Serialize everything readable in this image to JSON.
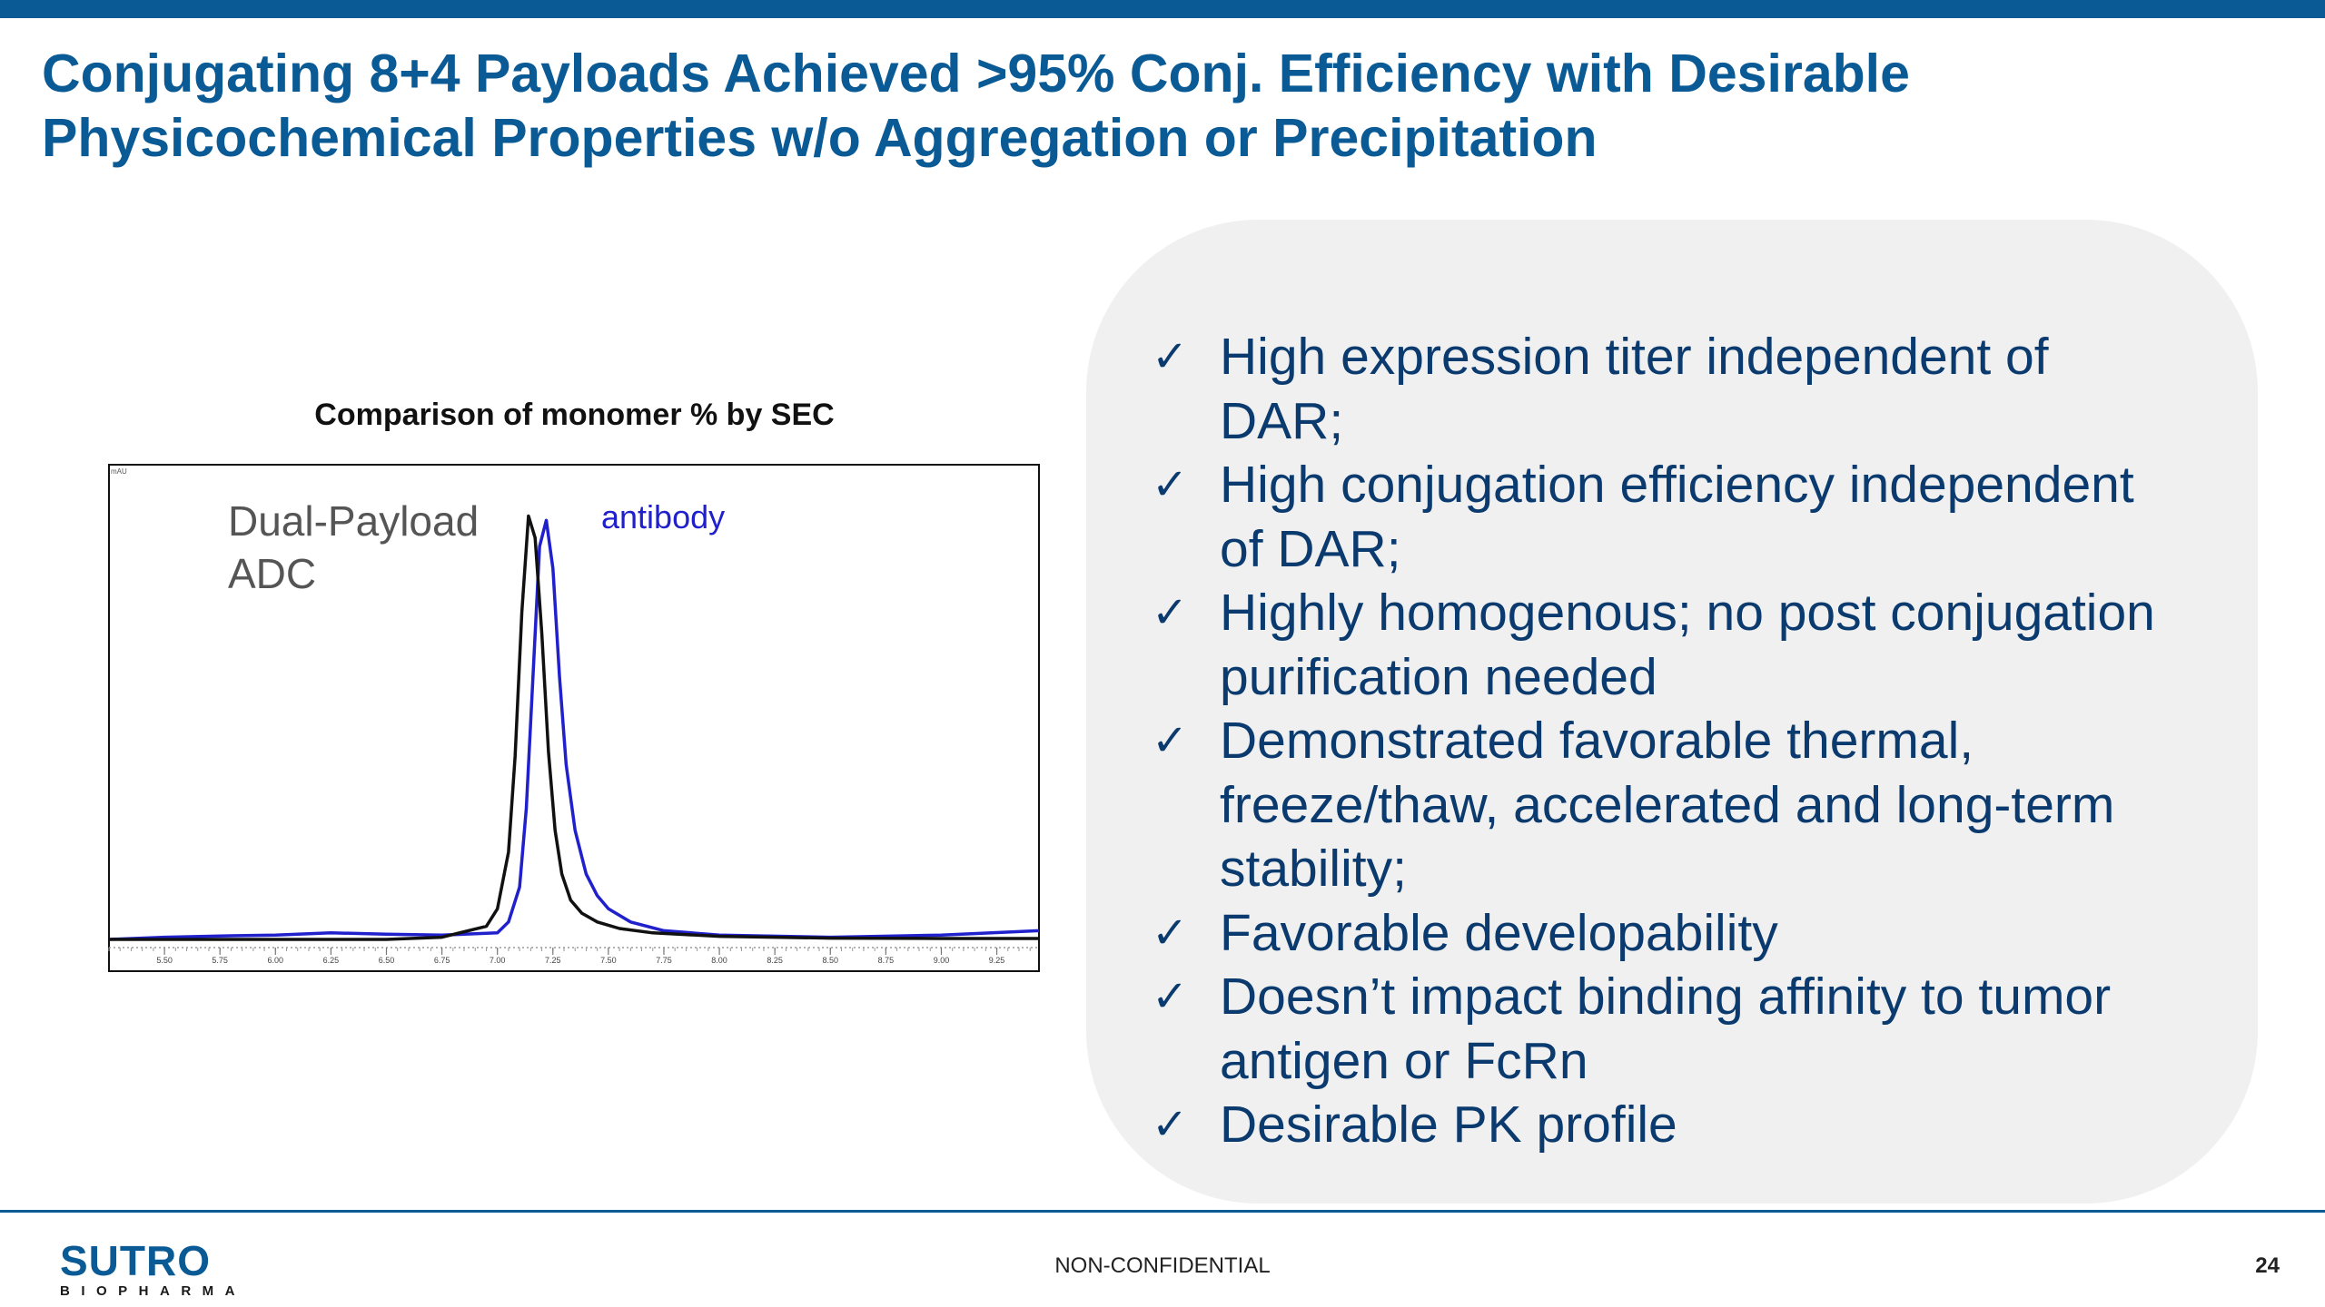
{
  "slide": {
    "title_line1": "Conjugating 8+4 Payloads Achieved >95% Conj. Efficiency with Desirable",
    "title_line2": "Physicochemical Properties w/o Aggregation or Precipitation",
    "footer_text": "NON-CONFIDENTIAL",
    "page_number": "24",
    "logo_main": "SUTRO",
    "logo_sub": "BIOPHARMA"
  },
  "bullets": [
    {
      "lines": [
        "High expression titer independent of",
        "DAR;"
      ]
    },
    {
      "lines": [
        "High conjugation efficiency independent",
        "of DAR;"
      ]
    },
    {
      "lines": [
        "Highly homogenous; no post conjugation",
        "purification needed"
      ]
    },
    {
      "lines": [
        "Demonstrated favorable thermal,",
        "freeze/thaw, accelerated and long-term",
        "stability;"
      ]
    },
    {
      "lines": [
        "Favorable developability"
      ]
    },
    {
      "lines": [
        "Doesn’t impact binding affinity to tumor",
        "antigen or FcRn"
      ]
    },
    {
      "lines": [
        "Desirable PK profile"
      ]
    }
  ],
  "icons": {
    "check": "check-mark-icon"
  },
  "colors": {
    "title": "#0a5a96",
    "bullet_text": "#0b3a6e",
    "panel": "#f0f0f0",
    "adc_trace": "#111111",
    "antibody_trace": "#2020cc"
  },
  "chart_data": {
    "type": "line",
    "title": "Comparison of monomer % by SEC",
    "ylabel": "mAU",
    "x_ticks": [
      "5.50",
      "5.75",
      "6.00",
      "6.25",
      "6.50",
      "6.75",
      "7.00",
      "7.25",
      "7.50",
      "7.75",
      "8.00",
      "8.25",
      "8.50",
      "8.75",
      "9.00",
      "9.25"
    ],
    "xlim": [
      5.25,
      9.44
    ],
    "ylim": [
      -0.05,
      1.05
    ],
    "series": [
      {
        "name": "Dual-Payload ADC",
        "label_lines": [
          "Dual-Payload",
          "ADC"
        ],
        "color": "#111111",
        "x": [
          5.25,
          5.5,
          5.75,
          6.0,
          6.25,
          6.5,
          6.75,
          6.95,
          7.0,
          7.05,
          7.08,
          7.11,
          7.14,
          7.17,
          7.2,
          7.23,
          7.26,
          7.29,
          7.33,
          7.38,
          7.45,
          7.55,
          7.7,
          8.0,
          8.5,
          9.0,
          9.44
        ],
        "y": [
          0.0,
          0.0,
          0.0,
          0.0,
          0.0,
          0.0,
          0.005,
          0.03,
          0.07,
          0.2,
          0.42,
          0.75,
          0.97,
          0.92,
          0.7,
          0.43,
          0.25,
          0.15,
          0.09,
          0.06,
          0.04,
          0.025,
          0.015,
          0.007,
          0.003,
          0.002,
          0.002
        ]
      },
      {
        "name": "antibody",
        "label_lines": [
          "antibody"
        ],
        "color": "#2020cc",
        "x": [
          5.25,
          5.5,
          5.75,
          6.0,
          6.25,
          6.5,
          6.75,
          7.0,
          7.05,
          7.1,
          7.13,
          7.16,
          7.19,
          7.22,
          7.25,
          7.28,
          7.31,
          7.35,
          7.4,
          7.45,
          7.5,
          7.6,
          7.75,
          8.0,
          8.5,
          9.0,
          9.44
        ],
        "y": [
          0.0,
          0.005,
          0.008,
          0.01,
          0.015,
          0.012,
          0.01,
          0.015,
          0.04,
          0.12,
          0.3,
          0.6,
          0.9,
          0.96,
          0.85,
          0.6,
          0.4,
          0.25,
          0.15,
          0.1,
          0.07,
          0.04,
          0.02,
          0.01,
          0.005,
          0.01,
          0.02
        ]
      }
    ],
    "grid": false
  }
}
